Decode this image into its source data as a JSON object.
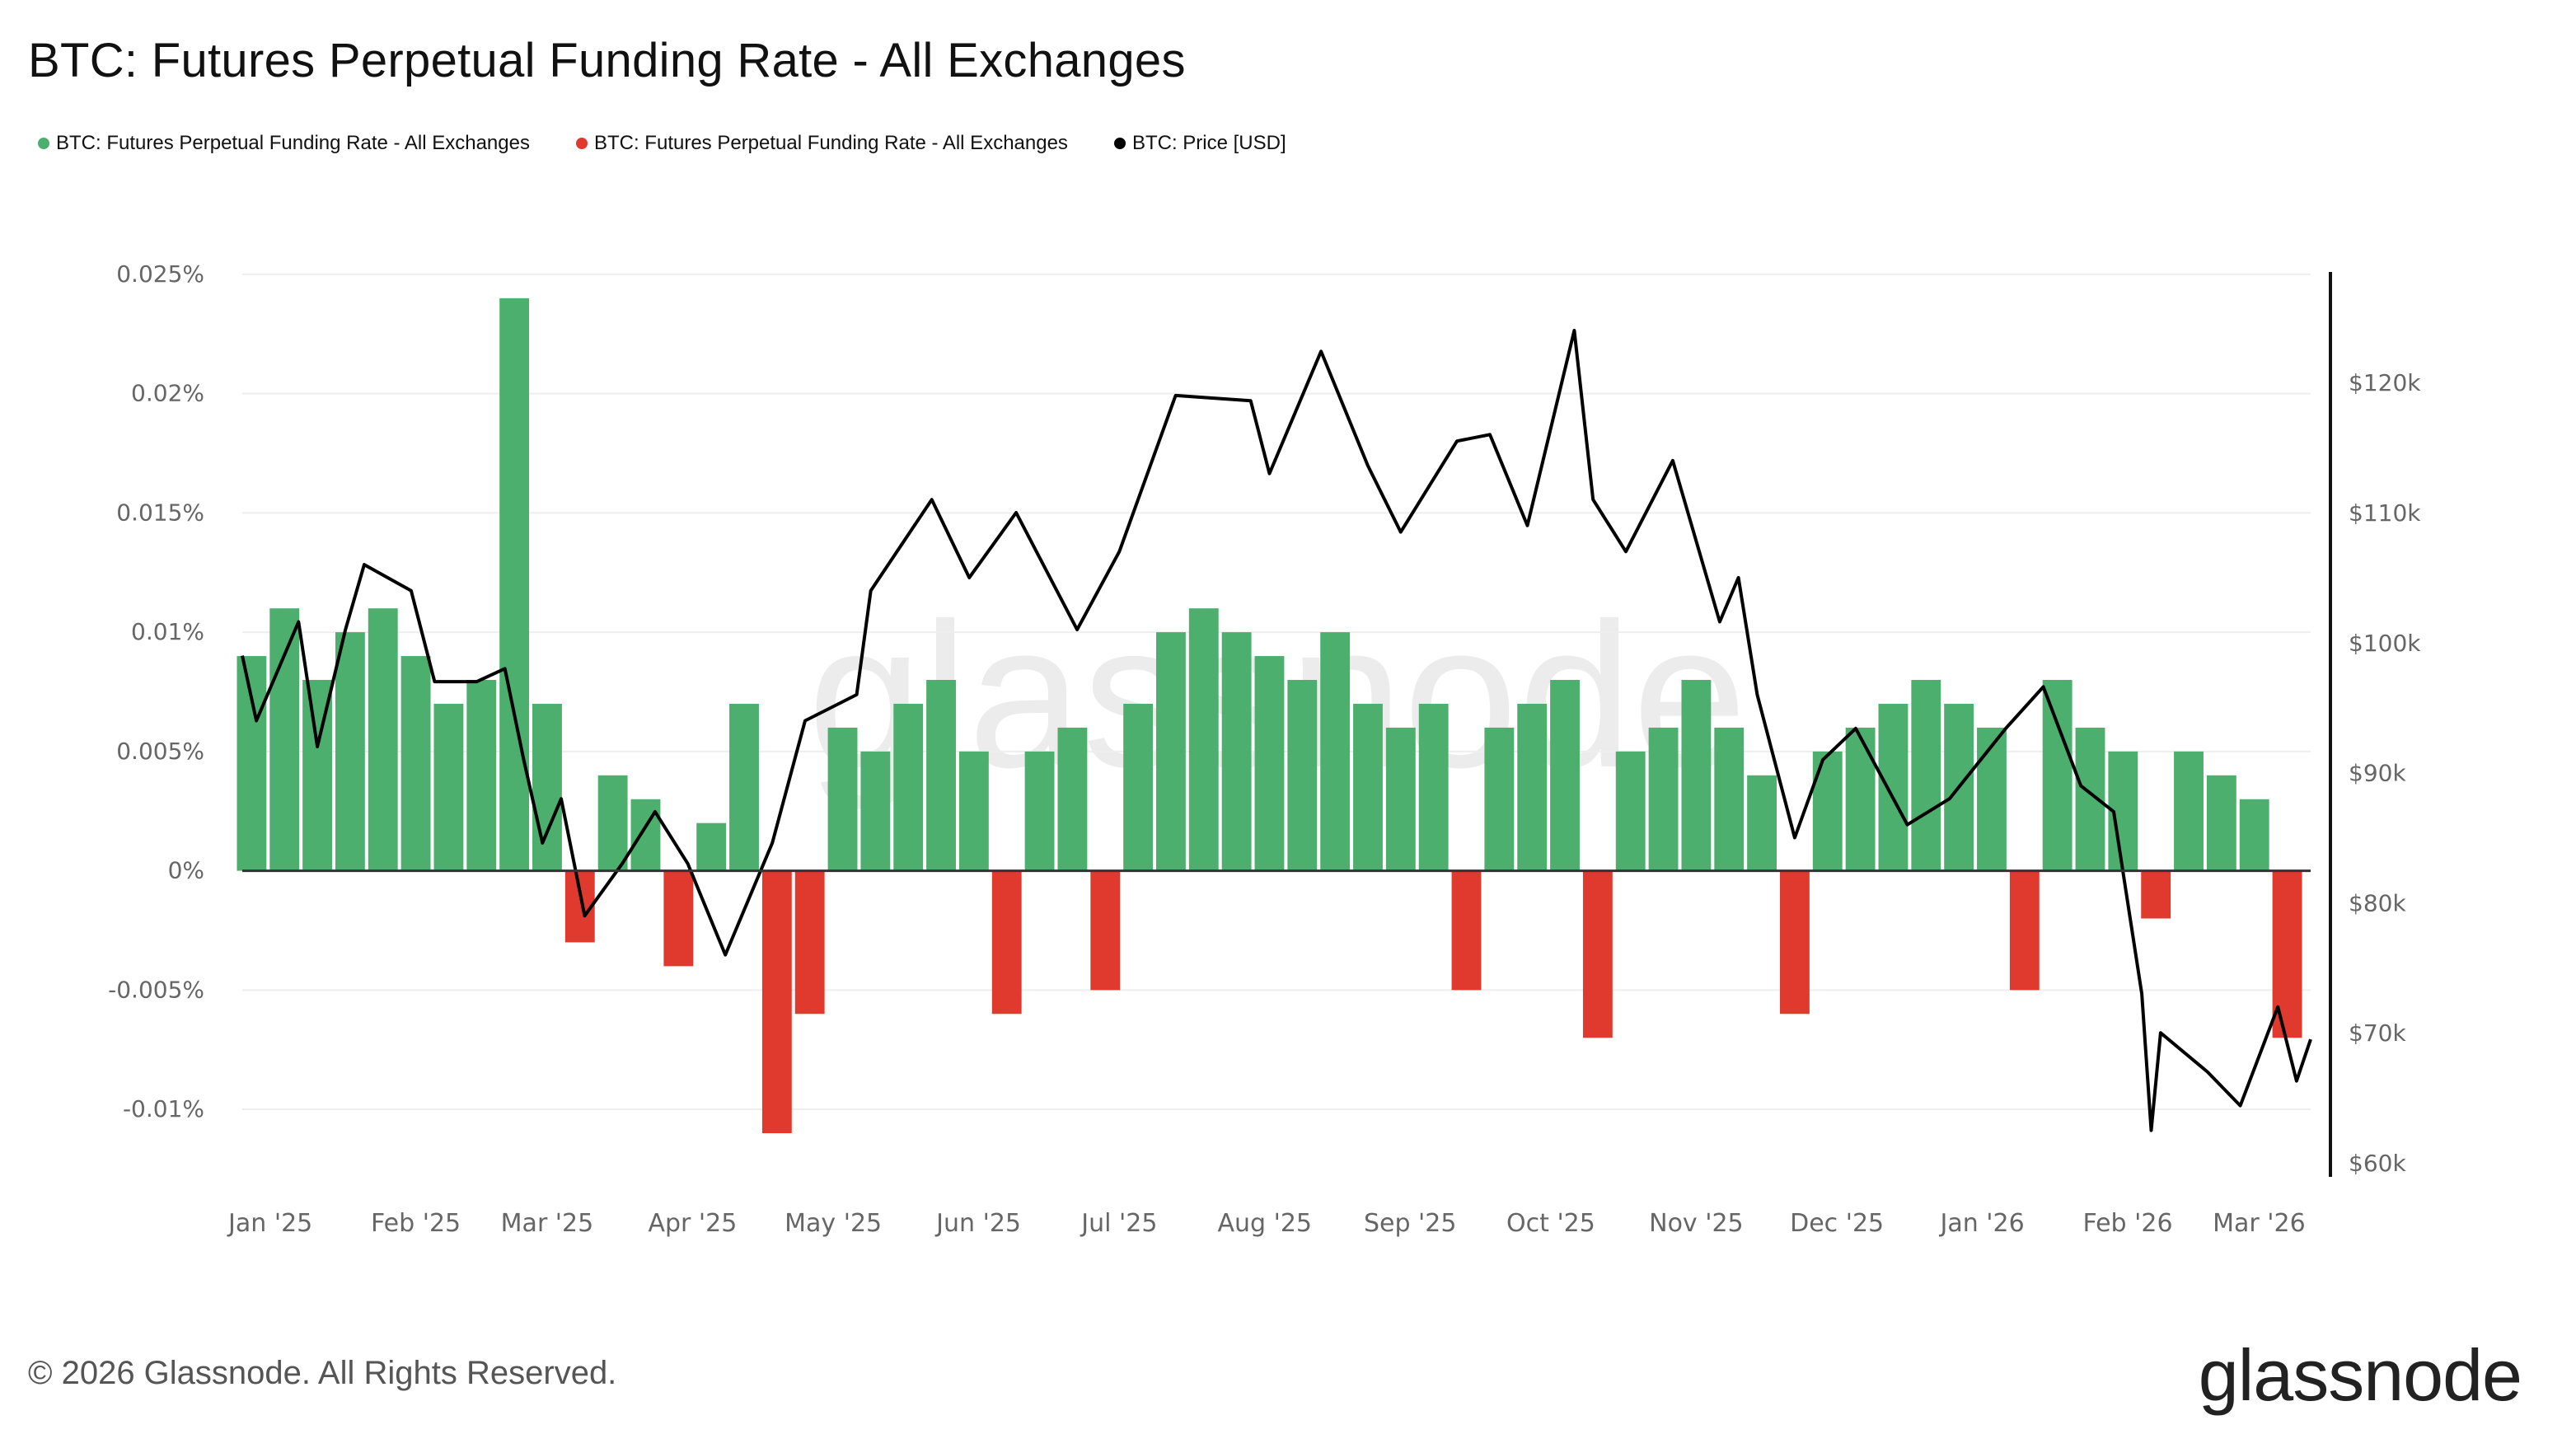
{
  "title": "BTC: Futures Perpetual Funding Rate - All Exchanges",
  "footer": "© 2026 Glassnode. All Rights Reserved.",
  "logo": "glassnode",
  "watermark": "glassnode",
  "colors": {
    "positive": "#4caf6e",
    "negative": "#e03a2f",
    "price": "#000000",
    "grid": "#eeeeee",
    "axis_text": "#666666"
  },
  "legend": [
    {
      "label": "BTC: Futures Perpetual Funding Rate - All Exchanges",
      "color": "#4caf6e"
    },
    {
      "label": "BTC: Futures Perpetual Funding Rate - All Exchanges",
      "color": "#e03a2f"
    },
    {
      "label": "BTC: Price [USD]",
      "color": "#000000"
    }
  ],
  "chart_data": {
    "type": "bar+line",
    "x_ticks": [
      "Jan '25",
      "Feb '25",
      "Mar '25",
      "Apr '25",
      "May '25",
      "Jun '25",
      "Jul '25",
      "Aug '25",
      "Sep '25",
      "Oct '25",
      "Nov '25",
      "Dec '25",
      "Jan '26",
      "Feb '26",
      "Mar '26"
    ],
    "x_tick_dates": [
      "2025-01-01",
      "2025-02-01",
      "2025-03-01",
      "2025-04-01",
      "2025-05-01",
      "2025-06-01",
      "2025-07-01",
      "2025-08-01",
      "2025-09-01",
      "2025-10-01",
      "2025-11-01",
      "2025-12-01",
      "2026-01-01",
      "2026-02-01",
      "2026-03-01"
    ],
    "xlim": [
      "2024-12-26",
      "2026-03-12"
    ],
    "y_left": {
      "ticks": [
        "0.025%",
        "0.02%",
        "0.015%",
        "0.01%",
        "0.005%",
        "0%",
        "-0.005%",
        "-0.01%"
      ],
      "tick_values": [
        0.025,
        0.02,
        0.015,
        0.01,
        0.005,
        0,
        -0.005,
        -0.01
      ],
      "ylim": [
        -0.0129,
        0.0251
      ],
      "unit": "%"
    },
    "y_right": {
      "ticks": [
        "$120k",
        "$110k",
        "$100k",
        "$90k",
        "$80k",
        "$70k",
        "$60k"
      ],
      "tick_values": [
        120,
        110,
        100,
        90,
        80,
        70,
        60
      ],
      "ylim": [
        58.8,
        128.5
      ],
      "unit": "k USD"
    },
    "grid": true,
    "legend_placement": "top-left",
    "funding_rate": [
      [
        "2024-12-28",
        0.009
      ],
      [
        "2025-01-04",
        0.011
      ],
      [
        "2025-01-11",
        0.008
      ],
      [
        "2025-01-18",
        0.01
      ],
      [
        "2025-01-25",
        0.011
      ],
      [
        "2025-02-01",
        0.009
      ],
      [
        "2025-02-08",
        0.007
      ],
      [
        "2025-02-15",
        0.008
      ],
      [
        "2025-02-22",
        0.024
      ],
      [
        "2025-03-01",
        0.007
      ],
      [
        "2025-03-08",
        -0.003
      ],
      [
        "2025-03-15",
        0.004
      ],
      [
        "2025-03-22",
        0.003
      ],
      [
        "2025-03-29",
        -0.004
      ],
      [
        "2025-04-05",
        0.002
      ],
      [
        "2025-04-12",
        0.007
      ],
      [
        "2025-04-19",
        -0.011
      ],
      [
        "2025-04-26",
        -0.006
      ],
      [
        "2025-05-03",
        0.006
      ],
      [
        "2025-05-10",
        0.005
      ],
      [
        "2025-05-17",
        0.007
      ],
      [
        "2025-05-24",
        0.008
      ],
      [
        "2025-05-31",
        0.005
      ],
      [
        "2025-06-07",
        -0.006
      ],
      [
        "2025-06-14",
        0.005
      ],
      [
        "2025-06-21",
        0.006
      ],
      [
        "2025-06-28",
        -0.005
      ],
      [
        "2025-07-05",
        0.007
      ],
      [
        "2025-07-12",
        0.01
      ],
      [
        "2025-07-19",
        0.011
      ],
      [
        "2025-07-26",
        0.01
      ],
      [
        "2025-08-02",
        0.009
      ],
      [
        "2025-08-09",
        0.008
      ],
      [
        "2025-08-16",
        0.01
      ],
      [
        "2025-08-23",
        0.007
      ],
      [
        "2025-08-30",
        0.006
      ],
      [
        "2025-09-06",
        0.007
      ],
      [
        "2025-09-13",
        -0.005
      ],
      [
        "2025-09-20",
        0.006
      ],
      [
        "2025-09-27",
        0.007
      ],
      [
        "2025-10-04",
        0.008
      ],
      [
        "2025-10-11",
        -0.007
      ],
      [
        "2025-10-18",
        0.005
      ],
      [
        "2025-10-25",
        0.006
      ],
      [
        "2025-11-01",
        0.008
      ],
      [
        "2025-11-08",
        0.006
      ],
      [
        "2025-11-15",
        0.004
      ],
      [
        "2025-11-22",
        -0.006
      ],
      [
        "2025-11-29",
        0.005
      ],
      [
        "2025-12-06",
        0.006
      ],
      [
        "2025-12-13",
        0.007
      ],
      [
        "2025-12-20",
        0.008
      ],
      [
        "2025-12-27",
        0.007
      ],
      [
        "2026-01-03",
        0.006
      ],
      [
        "2026-01-10",
        -0.005
      ],
      [
        "2026-01-17",
        0.008
      ],
      [
        "2026-01-24",
        0.006
      ],
      [
        "2026-01-31",
        0.005
      ],
      [
        "2026-02-07",
        -0.002
      ],
      [
        "2026-02-14",
        0.005
      ],
      [
        "2026-02-21",
        0.004
      ],
      [
        "2026-02-28",
        0.003
      ],
      [
        "2026-03-07",
        -0.007
      ]
    ],
    "price_k_usd": [
      [
        "2024-12-26",
        99
      ],
      [
        "2024-12-29",
        94
      ],
      [
        "2025-01-07",
        101.6
      ],
      [
        "2025-01-11",
        92
      ],
      [
        "2025-01-17",
        101
      ],
      [
        "2025-01-21",
        106
      ],
      [
        "2025-01-31",
        104
      ],
      [
        "2025-02-05",
        97
      ],
      [
        "2025-02-14",
        97
      ],
      [
        "2025-02-20",
        98
      ],
      [
        "2025-02-24",
        91
      ],
      [
        "2025-02-28",
        84.6
      ],
      [
        "2025-03-04",
        88
      ],
      [
        "2025-03-09",
        79
      ],
      [
        "2025-03-17",
        83
      ],
      [
        "2025-03-24",
        87
      ],
      [
        "2025-03-31",
        83
      ],
      [
        "2025-04-08",
        76
      ],
      [
        "2025-04-18",
        84.6
      ],
      [
        "2025-04-25",
        94
      ],
      [
        "2025-05-06",
        96
      ],
      [
        "2025-05-09",
        104
      ],
      [
        "2025-05-22",
        111
      ],
      [
        "2025-05-30",
        105
      ],
      [
        "2025-06-09",
        110
      ],
      [
        "2025-06-22",
        101
      ],
      [
        "2025-07-01",
        107
      ],
      [
        "2025-07-13",
        119
      ],
      [
        "2025-07-29",
        118.6
      ],
      [
        "2025-08-02",
        113
      ],
      [
        "2025-08-13",
        122.4
      ],
      [
        "2025-08-23",
        113.6
      ],
      [
        "2025-08-30",
        108.5
      ],
      [
        "2025-09-11",
        115.5
      ],
      [
        "2025-09-18",
        116
      ],
      [
        "2025-09-26",
        109
      ],
      [
        "2025-10-06",
        124
      ],
      [
        "2025-10-10",
        111
      ],
      [
        "2025-10-17",
        107
      ],
      [
        "2025-10-27",
        114
      ],
      [
        "2025-11-06",
        101.6
      ],
      [
        "2025-11-10",
        105
      ],
      [
        "2025-11-14",
        96
      ],
      [
        "2025-11-22",
        85
      ],
      [
        "2025-11-28",
        91
      ],
      [
        "2025-12-05",
        93.4
      ],
      [
        "2025-12-16",
        86
      ],
      [
        "2025-12-25",
        88
      ],
      [
        "2026-01-06",
        93.4
      ],
      [
        "2026-01-14",
        96.6
      ],
      [
        "2026-01-22",
        89
      ],
      [
        "2026-01-29",
        87
      ],
      [
        "2026-02-04",
        73
      ],
      [
        "2026-02-06",
        62.5
      ],
      [
        "2026-02-08",
        70
      ],
      [
        "2026-02-18",
        67
      ],
      [
        "2026-02-25",
        64.4
      ],
      [
        "2026-03-05",
        72
      ],
      [
        "2026-03-09",
        66.3
      ],
      [
        "2026-03-12",
        69.5
      ]
    ]
  }
}
